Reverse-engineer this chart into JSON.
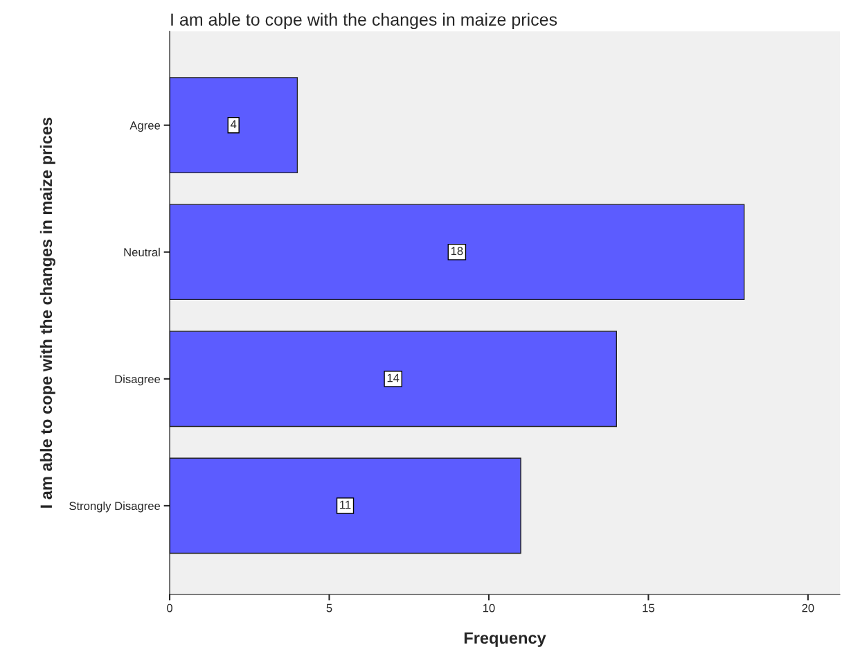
{
  "chart_data": {
    "type": "bar",
    "orientation": "horizontal",
    "title": "I am able to cope with the changes in maize prices",
    "xlabel": "Frequency",
    "ylabel": "I am able to cope with the changes in maize prices",
    "categories": [
      "Agree",
      "Neutral",
      "Disagree",
      "Strongly Disagree"
    ],
    "values": [
      4,
      18,
      14,
      11
    ],
    "color": "#5c5cff",
    "xlim": [
      0,
      21
    ],
    "xticks": [
      0,
      5,
      10,
      15,
      20
    ],
    "grid": false,
    "data_labels": true
  }
}
